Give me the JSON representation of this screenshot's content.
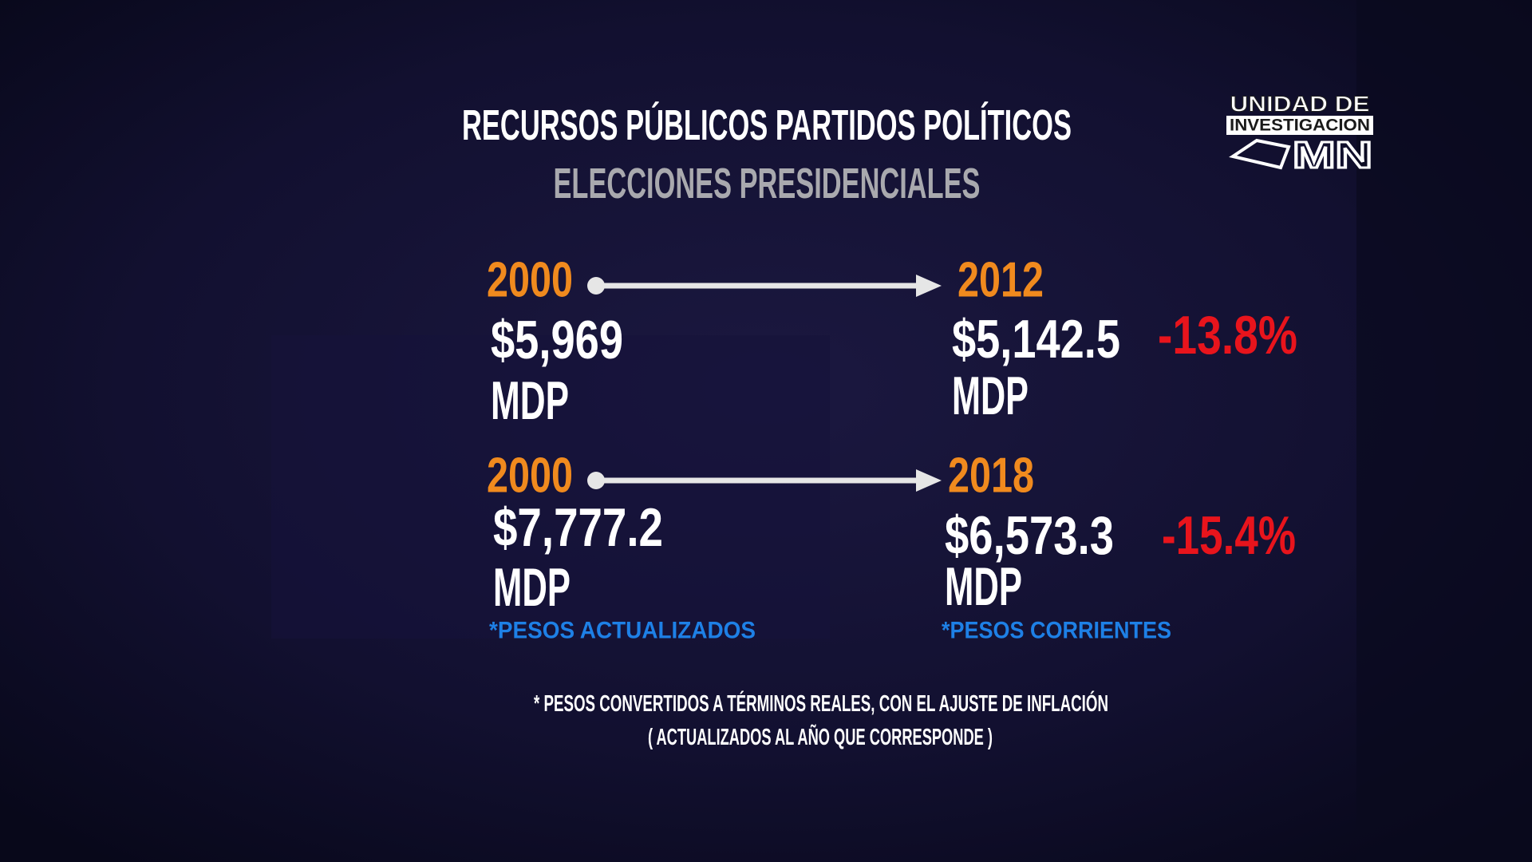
{
  "header": {
    "title": "RECURSOS PÚBLICOS PARTIDOS POLÍTICOS",
    "subtitle": "ELECCIONES PRESIDENCIALES"
  },
  "logo": {
    "line1": "UNIDAD DE",
    "line2": "INVESTIGACION",
    "line3": "MN"
  },
  "comparisons": [
    {
      "from_year": "2000",
      "from_amount": "$5,969",
      "from_unit": "MDP",
      "to_year": "2012",
      "to_amount": "$5,142.5",
      "to_unit": "MDP",
      "change": "-13.8%"
    },
    {
      "from_year": "2000",
      "from_amount": "$7,777.2",
      "from_unit": "MDP",
      "to_year": "2018",
      "to_amount": "$6,573.3",
      "to_unit": "MDP",
      "change": "-15.4%"
    }
  ],
  "notes": {
    "left": "*PESOS ACTUALIZADOS",
    "right": "*PESOS CORRIENTES"
  },
  "footnote": {
    "line1": "* PESOS CONVERTIDOS A TÉRMINOS REALES, CON EL AJUSTE DE INFLACIÓN",
    "line2": "( ACTUALIZADOS AL AÑO QUE CORRESPONDE )"
  }
}
